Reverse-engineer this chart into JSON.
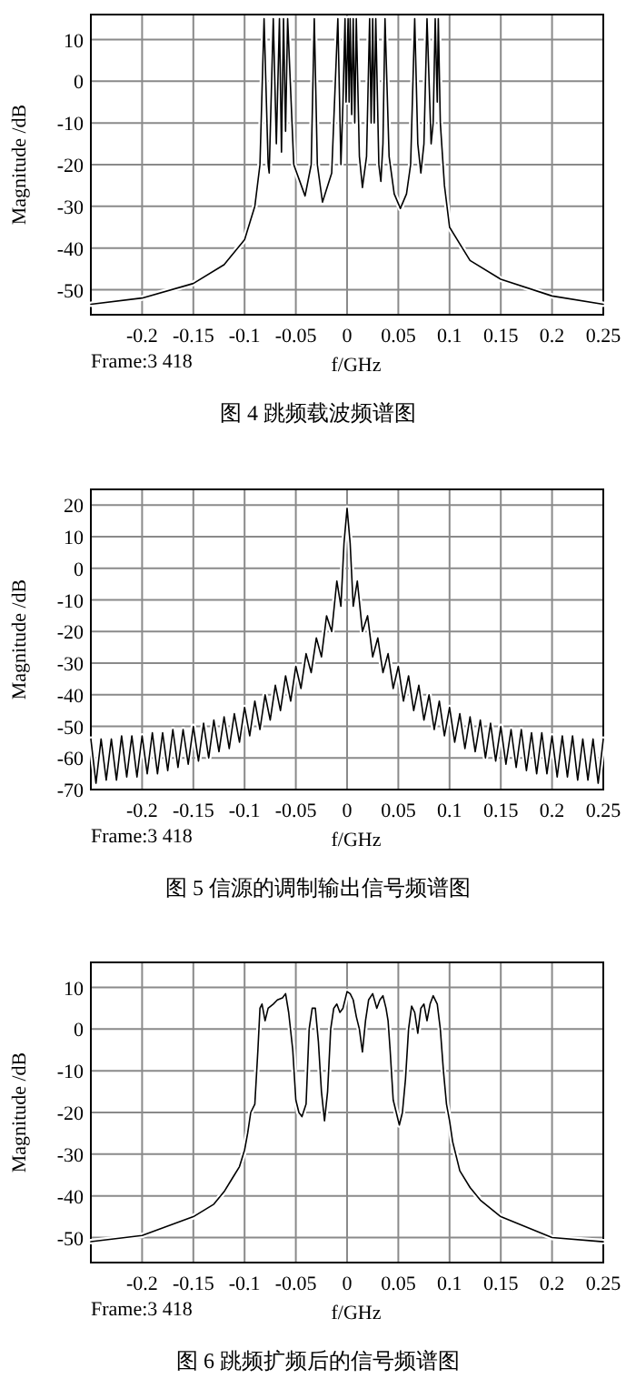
{
  "chart_data": [
    {
      "type": "line",
      "title": "图 4 跳频载波频谱图",
      "xlabel": "f/GHz",
      "ylabel": "Magnitude /dB",
      "annotations": [
        "Frame:3 418"
      ],
      "grid": true,
      "xlim": [
        -0.25,
        0.25
      ],
      "ylim": [
        -56,
        16
      ],
      "xticks": [
        -0.2,
        -0.15,
        -0.1,
        -0.05,
        0,
        0.05,
        0.1,
        0.15,
        0.2,
        0.25
      ],
      "yticks": [
        -50,
        -40,
        -30,
        -20,
        -10,
        0,
        10
      ],
      "series": [
        {
          "color": "#000000",
          "x": [
            -0.25,
            -0.2,
            -0.15,
            -0.12,
            -0.1,
            -0.09,
            -0.085,
            -0.081,
            -0.077,
            -0.076,
            -0.072,
            -0.069,
            -0.066,
            -0.064,
            -0.062,
            -0.06,
            -0.058,
            -0.052,
            -0.041,
            -0.035,
            -0.032,
            -0.029,
            -0.024,
            -0.015,
            -0.009,
            -0.006,
            -0.004,
            -0.002,
            -0.001,
            0.001,
            0.002,
            0.003,
            0.0045,
            0.006,
            0.0075,
            0.009,
            0.012,
            0.015,
            0.019,
            0.022,
            0.0235,
            0.025,
            0.0265,
            0.028,
            0.031,
            0.033,
            0.035,
            0.037,
            0.041,
            0.046,
            0.052,
            0.058,
            0.062,
            0.066,
            0.069,
            0.072,
            0.075,
            0.078,
            0.082,
            0.084,
            0.086,
            0.088,
            0.089,
            0.091,
            0.095,
            0.1,
            0.12,
            0.15,
            0.2,
            0.25
          ],
          "values": [
            -53.5,
            -52,
            -48.5,
            -44,
            -38,
            -30,
            -20,
            15,
            -20,
            -22,
            15,
            -15,
            15,
            -17,
            15,
            -12,
            15,
            -20,
            -27.5,
            -20,
            15,
            -20,
            -29,
            -22,
            15,
            -20,
            -5,
            15,
            -5,
            15,
            -5,
            15,
            -8,
            15,
            -10,
            15,
            -18,
            -25.5,
            -18,
            15,
            -10,
            15,
            -10,
            15,
            -20,
            -24,
            -15,
            15,
            -18,
            -27,
            -30.5,
            -27,
            -20,
            15,
            -15,
            -22,
            -15,
            15,
            -15,
            -10,
            15,
            -5,
            15,
            -10,
            -25,
            -35,
            -43,
            -47.5,
            -51.5,
            -53.5
          ]
        }
      ]
    },
    {
      "type": "line",
      "title": "图 5 信源的调制输出信号频谱图",
      "xlabel": "f/GHz",
      "ylabel": "Magnitude /dB",
      "annotations": [
        "Frame:3 418"
      ],
      "grid": true,
      "xlim": [
        -0.25,
        0.25
      ],
      "ylim": [
        -70,
        25
      ],
      "xticks": [
        -0.2,
        -0.15,
        -0.1,
        -0.05,
        0,
        0.05,
        0.1,
        0.15,
        0.2,
        0.25
      ],
      "yticks": [
        -70,
        -60,
        -50,
        -40,
        -30,
        -20,
        -10,
        0,
        10,
        20
      ],
      "series": [
        {
          "color": "#000000",
          "x": [
            -0.25,
            -0.245,
            -0.24,
            -0.235,
            -0.23,
            -0.225,
            -0.22,
            -0.215,
            -0.21,
            -0.205,
            -0.2,
            -0.195,
            -0.19,
            -0.185,
            -0.18,
            -0.175,
            -0.17,
            -0.165,
            -0.16,
            -0.155,
            -0.15,
            -0.145,
            -0.14,
            -0.135,
            -0.13,
            -0.125,
            -0.12,
            -0.115,
            -0.11,
            -0.105,
            -0.1,
            -0.095,
            -0.09,
            -0.085,
            -0.08,
            -0.075,
            -0.07,
            -0.065,
            -0.06,
            -0.055,
            -0.05,
            -0.045,
            -0.04,
            -0.035,
            -0.03,
            -0.025,
            -0.02,
            -0.015,
            -0.01,
            -0.006,
            -0.003,
            0,
            0.003,
            0.006,
            0.01,
            0.015,
            0.02,
            0.025,
            0.03,
            0.035,
            0.04,
            0.045,
            0.05,
            0.055,
            0.06,
            0.065,
            0.07,
            0.075,
            0.08,
            0.085,
            0.09,
            0.095,
            0.1,
            0.105,
            0.11,
            0.115,
            0.12,
            0.125,
            0.13,
            0.135,
            0.14,
            0.145,
            0.15,
            0.155,
            0.16,
            0.165,
            0.17,
            0.175,
            0.18,
            0.185,
            0.19,
            0.195,
            0.2,
            0.205,
            0.21,
            0.215,
            0.22,
            0.225,
            0.23,
            0.235,
            0.24,
            0.245,
            0.25
          ],
          "values": [
            -54,
            -68,
            -54,
            -67,
            -54,
            -67,
            -53,
            -66,
            -53,
            -66,
            -53,
            -65,
            -52,
            -65,
            -52,
            -64,
            -51,
            -63,
            -51,
            -62,
            -50,
            -61,
            -49,
            -60,
            -48,
            -58,
            -47,
            -57,
            -46,
            -55,
            -44,
            -53,
            -42,
            -51,
            -40,
            -48,
            -37,
            -45,
            -34,
            -42,
            -31,
            -38,
            -27,
            -33,
            -22,
            -28,
            -15,
            -20,
            -4,
            -12,
            8,
            19,
            8,
            -12,
            -4,
            -20,
            -15,
            -28,
            -22,
            -33,
            -27,
            -38,
            -31,
            -42,
            -34,
            -45,
            -37,
            -48,
            -40,
            -51,
            -42,
            -53,
            -44,
            -55,
            -46,
            -57,
            -47,
            -58,
            -48,
            -60,
            -49,
            -61,
            -50,
            -62,
            -51,
            -63,
            -51,
            -64,
            -52,
            -65,
            -52,
            -65,
            -53,
            -66,
            -53,
            -66,
            -53,
            -67,
            -54,
            -67,
            -54,
            -68,
            -54
          ]
        }
      ]
    },
    {
      "type": "line",
      "title": "图 6 跳频扩频后的信号频谱图",
      "xlabel": "f/GHz",
      "ylabel": "Magnitude /dB",
      "annotations": [
        "Frame:3 418"
      ],
      "grid": true,
      "xlim": [
        -0.25,
        0.25
      ],
      "ylim": [
        -56,
        16
      ],
      "xticks": [
        -0.2,
        -0.15,
        -0.1,
        -0.05,
        0,
        0.05,
        0.1,
        0.15,
        0.2,
        0.25
      ],
      "yticks": [
        -50,
        -40,
        -30,
        -20,
        -10,
        0,
        10
      ],
      "series": [
        {
          "color": "#000000",
          "x": [
            -0.25,
            -0.2,
            -0.15,
            -0.13,
            -0.12,
            -0.11,
            -0.105,
            -0.1,
            -0.097,
            -0.094,
            -0.09,
            -0.087,
            -0.085,
            -0.083,
            -0.08,
            -0.077,
            -0.072,
            -0.068,
            -0.063,
            -0.06,
            -0.057,
            -0.053,
            -0.05,
            -0.047,
            -0.044,
            -0.04,
            -0.037,
            -0.034,
            -0.031,
            -0.028,
            -0.025,
            -0.022,
            -0.019,
            -0.016,
            -0.013,
            -0.01,
            -0.007,
            -0.004,
            0,
            0.003,
            0.006,
            0.009,
            0.012,
            0.015,
            0.018,
            0.021,
            0.025,
            0.029,
            0.032,
            0.035,
            0.038,
            0.04,
            0.042,
            0.045,
            0.048,
            0.051,
            0.054,
            0.057,
            0.06,
            0.063,
            0.066,
            0.069,
            0.072,
            0.075,
            0.078,
            0.081,
            0.084,
            0.088,
            0.091,
            0.094,
            0.097,
            0.1,
            0.103,
            0.107,
            0.11,
            0.12,
            0.13,
            0.15,
            0.2,
            0.25
          ],
          "values": [
            -51,
            -49.5,
            -45,
            -42,
            -39,
            -35,
            -33,
            -29,
            -25,
            -20,
            -18,
            -5,
            5,
            6,
            2,
            5,
            6,
            7,
            7.5,
            8.5,
            4,
            -5,
            -17,
            -20,
            -21,
            -18,
            0,
            5,
            5,
            -3,
            -15,
            -22,
            -15,
            0,
            5,
            6,
            4,
            5,
            9,
            8.5,
            7,
            3,
            0,
            -5.5,
            2,
            7,
            8.5,
            5,
            7,
            8,
            5,
            2,
            -5,
            -17,
            -20,
            -23,
            -20,
            -12,
            0,
            5.5,
            4,
            -1,
            5,
            6,
            2,
            6,
            8,
            6,
            0,
            -10,
            -18,
            -22,
            -27,
            -31,
            -34,
            -38,
            -41,
            -45,
            -50,
            -51
          ]
        }
      ]
    }
  ]
}
